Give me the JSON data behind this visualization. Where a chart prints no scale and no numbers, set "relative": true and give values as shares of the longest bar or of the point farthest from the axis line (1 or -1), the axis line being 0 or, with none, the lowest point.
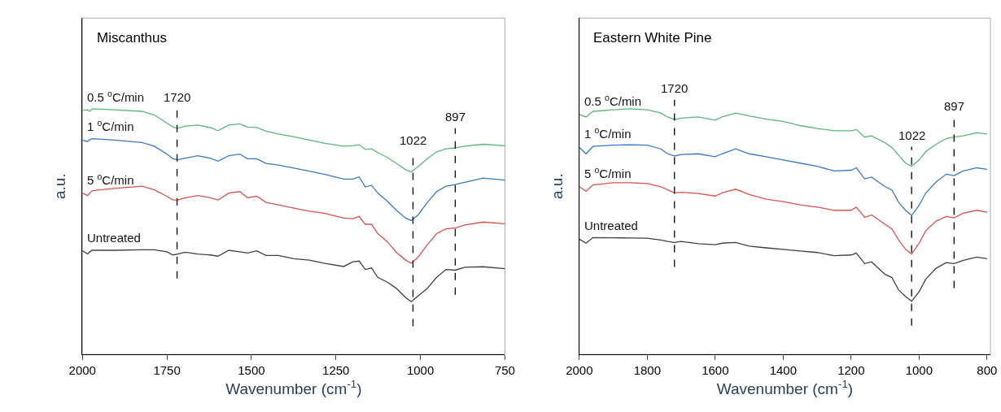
{
  "chart_data": [
    {
      "type": "line",
      "title": "Miscanthus",
      "xlabel": "Wavenumber (cm$^{-1}$)",
      "ylabel": "a.u.",
      "relative": true,
      "xlim": [
        2000,
        750
      ],
      "xticks": [
        2000,
        1750,
        1500,
        1250,
        1000,
        750
      ],
      "grid": false,
      "legend": false,
      "marker": "none",
      "line_style": "solid",
      "x": [
        2000,
        1984.4,
        1978,
        1970.6,
        1906.4,
        1823.8,
        1787.1,
        1750.4,
        1732.0,
        1718.3,
        1695.3,
        1658.6,
        1621.9,
        1598.9,
        1566.8,
        1534.7,
        1511.7,
        1484.2,
        1456.7,
        1419.9,
        1374.1,
        1328.2,
        1282.3,
        1227.2,
        1199.7,
        1181.4,
        1163.0,
        1144.6,
        1126.3,
        1098.8,
        1071.2,
        1043.7,
        1027.2,
        1007.0,
        979.5,
        952.0,
        924.4,
        896.9,
        869.3,
        814.3,
        750
      ],
      "series": [
        {
          "name": "0.5 $^{o}$C/min",
          "color": "#5bb57a",
          "values": [
            0.994,
            0.996,
            0.99,
            1.0,
            0.996,
            0.99,
            0.975,
            0.943,
            0.926,
            0.921,
            0.93,
            0.934,
            0.924,
            0.911,
            0.934,
            0.939,
            0.926,
            0.924,
            0.909,
            0.898,
            0.886,
            0.873,
            0.86,
            0.848,
            0.85,
            0.854,
            0.835,
            0.837,
            0.822,
            0.803,
            0.778,
            0.752,
            0.743,
            0.765,
            0.797,
            0.825,
            0.837,
            0.841,
            0.848,
            0.856,
            0.85
          ]
        },
        {
          "name": "1 $^{o}$C/min",
          "color": "#3a78c9",
          "values": [
            0.873,
            0.867,
            0.875,
            0.879,
            0.873,
            0.863,
            0.848,
            0.816,
            0.797,
            0.793,
            0.799,
            0.809,
            0.799,
            0.787,
            0.809,
            0.816,
            0.797,
            0.797,
            0.778,
            0.771,
            0.759,
            0.746,
            0.733,
            0.714,
            0.714,
            0.723,
            0.682,
            0.689,
            0.657,
            0.625,
            0.587,
            0.555,
            0.545,
            0.568,
            0.619,
            0.663,
            0.685,
            0.692,
            0.701,
            0.718,
            0.71
          ]
        },
        {
          "name": "5 $^{o}$C/min",
          "color": "#d9534f",
          "values": [
            0.657,
            0.647,
            0.657,
            0.667,
            0.676,
            0.685,
            0.67,
            0.644,
            0.629,
            0.629,
            0.638,
            0.647,
            0.638,
            0.629,
            0.657,
            0.663,
            0.638,
            0.644,
            0.619,
            0.609,
            0.596,
            0.583,
            0.574,
            0.555,
            0.553,
            0.562,
            0.53,
            0.53,
            0.492,
            0.46,
            0.416,
            0.384,
            0.371,
            0.396,
            0.447,
            0.492,
            0.511,
            0.515,
            0.527,
            0.539,
            0.532
          ]
        },
        {
          "name": "Untreated",
          "color": "#404040",
          "values": [
            0.422,
            0.409,
            0.418,
            0.424,
            0.424,
            0.426,
            0.426,
            0.418,
            0.405,
            0.409,
            0.416,
            0.409,
            0.405,
            0.4,
            0.424,
            0.418,
            0.413,
            0.422,
            0.403,
            0.403,
            0.39,
            0.384,
            0.371,
            0.358,
            0.377,
            0.38,
            0.346,
            0.352,
            0.314,
            0.295,
            0.269,
            0.231,
            0.215,
            0.238,
            0.269,
            0.314,
            0.346,
            0.343,
            0.355,
            0.357,
            0.349
          ]
        }
      ],
      "ref_lines": [
        {
          "axis": "x",
          "value": 1720,
          "label": "1720",
          "color": "#000000",
          "line_style": "dashed"
        },
        {
          "axis": "x",
          "value": 1022,
          "label": "1022",
          "color": "#000000",
          "line_style": "dashed"
        },
        {
          "axis": "x",
          "value": 897,
          "label": "897",
          "color": "#000000",
          "line_style": "dashed"
        }
      ]
    },
    {
      "type": "line",
      "title": "Eastern White Pine",
      "xlabel": "Wavenumber (cm$^{-1}$)",
      "ylabel": "a.u.",
      "relative": true,
      "xlim": [
        2000,
        790
      ],
      "xticks": [
        2000,
        1800,
        1600,
        1400,
        1200,
        1000,
        800
      ],
      "grid": false,
      "legend": false,
      "marker": "none",
      "line_style": "solid",
      "x": [
        2000,
        1980,
        1960,
        1900,
        1850,
        1800,
        1760,
        1740,
        1720,
        1700,
        1650,
        1600,
        1580,
        1540,
        1500,
        1450,
        1400,
        1350,
        1300,
        1250,
        1200,
        1185,
        1160,
        1140,
        1100,
        1080,
        1060,
        1040,
        1022,
        1000,
        980,
        950,
        920,
        897,
        870,
        830,
        800
      ],
      "series": [
        {
          "name": "0.5 $^{o}$C/min",
          "color": "#5bb57a",
          "values": [
            0.977,
            0.967,
            0.99,
            0.996,
            1.0,
            0.996,
            0.983,
            0.967,
            0.957,
            0.962,
            0.967,
            0.954,
            0.967,
            0.983,
            0.971,
            0.958,
            0.949,
            0.932,
            0.92,
            0.911,
            0.911,
            0.916,
            0.885,
            0.89,
            0.862,
            0.843,
            0.811,
            0.779,
            0.766,
            0.792,
            0.826,
            0.856,
            0.879,
            0.885,
            0.89,
            0.903,
            0.898
          ]
        },
        {
          "name": "1 $^{o}$C/min",
          "color": "#3a78c9",
          "values": [
            0.843,
            0.817,
            0.847,
            0.852,
            0.854,
            0.852,
            0.837,
            0.817,
            0.808,
            0.814,
            0.817,
            0.805,
            0.817,
            0.837,
            0.817,
            0.805,
            0.792,
            0.779,
            0.766,
            0.747,
            0.75,
            0.76,
            0.715,
            0.722,
            0.683,
            0.67,
            0.619,
            0.587,
            0.566,
            0.607,
            0.658,
            0.702,
            0.734,
            0.728,
            0.747,
            0.76,
            0.754
          ]
        },
        {
          "name": "5 $^{o}$C/min",
          "color": "#d9534f",
          "values": [
            0.683,
            0.664,
            0.69,
            0.699,
            0.699,
            0.696,
            0.683,
            0.67,
            0.658,
            0.66,
            0.655,
            0.645,
            0.658,
            0.673,
            0.651,
            0.632,
            0.622,
            0.609,
            0.6,
            0.587,
            0.587,
            0.6,
            0.558,
            0.568,
            0.53,
            0.511,
            0.466,
            0.428,
            0.409,
            0.453,
            0.504,
            0.543,
            0.562,
            0.556,
            0.575,
            0.587,
            0.579
          ]
        },
        {
          "name": "Untreated",
          "color": "#404040",
          "values": [
            0.469,
            0.453,
            0.476,
            0.475,
            0.474,
            0.473,
            0.466,
            0.46,
            0.456,
            0.46,
            0.451,
            0.447,
            0.453,
            0.456,
            0.441,
            0.434,
            0.428,
            0.421,
            0.415,
            0.402,
            0.405,
            0.413,
            0.37,
            0.377,
            0.326,
            0.313,
            0.262,
            0.236,
            0.217,
            0.255,
            0.307,
            0.351,
            0.374,
            0.37,
            0.383,
            0.396,
            0.39
          ]
        }
      ],
      "ref_lines": [
        {
          "axis": "x",
          "value": 1720,
          "label": "1720",
          "color": "#000000",
          "line_style": "dashed"
        },
        {
          "axis": "x",
          "value": 1022,
          "label": "1022",
          "color": "#000000",
          "line_style": "dashed"
        },
        {
          "axis": "x",
          "value": 897,
          "label": "897",
          "color": "#000000",
          "line_style": "dashed"
        }
      ]
    }
  ]
}
